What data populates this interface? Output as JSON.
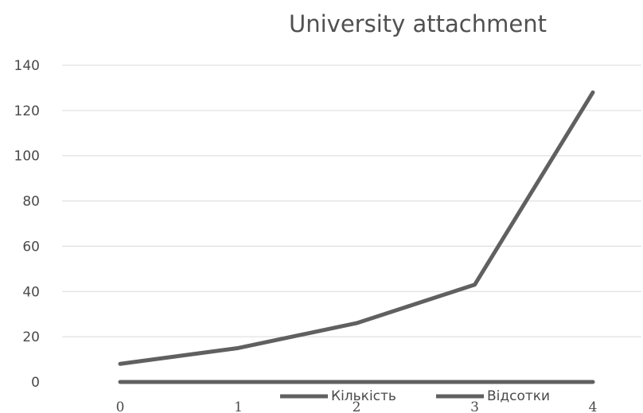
{
  "chart_data": {
    "type": "line",
    "title": "University attachment",
    "xlabel": "",
    "ylabel": "",
    "x": [
      0,
      1,
      2,
      3,
      4
    ],
    "x_tick_labels": [
      "0",
      "1",
      "2",
      "3",
      "4"
    ],
    "ylim": [
      0,
      140
    ],
    "y_ticks": [
      0,
      20,
      40,
      60,
      80,
      100,
      120,
      140
    ],
    "y_tick_labels": [
      "0",
      "20",
      "40",
      "60",
      "80",
      "100",
      "120",
      "140"
    ],
    "grid": true,
    "legend_position": "bottom",
    "series": [
      {
        "name": "Кількість",
        "values": [
          8,
          15,
          26,
          43,
          128
        ],
        "color": "#606060"
      },
      {
        "name": "Відсотки",
        "values": [
          0,
          0,
          0,
          0,
          0
        ],
        "color": "#606060"
      }
    ]
  }
}
